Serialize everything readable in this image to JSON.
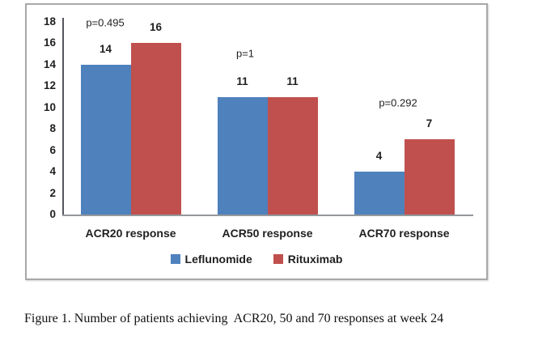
{
  "figure": {
    "caption": "Figure 1. Number of patients achieving  ACR20, 50 and 70 responses at week 24"
  },
  "chart_data": {
    "type": "bar",
    "title": "",
    "xlabel": "",
    "ylabel": "",
    "categories": [
      "ACR20 response",
      "ACR50 response",
      "ACR70 response"
    ],
    "series": [
      {
        "name": "Leflunomide",
        "color": "#4F81BD",
        "values": [
          14,
          11,
          4
        ]
      },
      {
        "name": "Rituximab",
        "color": "#C0504D",
        "values": [
          16,
          11,
          7
        ]
      }
    ],
    "data_labels": [
      14,
      16,
      11,
      11,
      4,
      7
    ],
    "annotations": [
      {
        "label": "p=0.495",
        "group": "ACR20 response"
      },
      {
        "label": "p=1",
        "group": "ACR50 response"
      },
      {
        "label": "p=0.292",
        "group": "ACR70 response"
      }
    ],
    "ylim": [
      0,
      18
    ],
    "yticks": [
      0,
      2,
      4,
      6,
      8,
      10,
      12,
      14,
      16,
      18
    ],
    "grid": false,
    "legend_position": "bottom",
    "legend": [
      "Leflunomide",
      "Rituximab"
    ]
  }
}
